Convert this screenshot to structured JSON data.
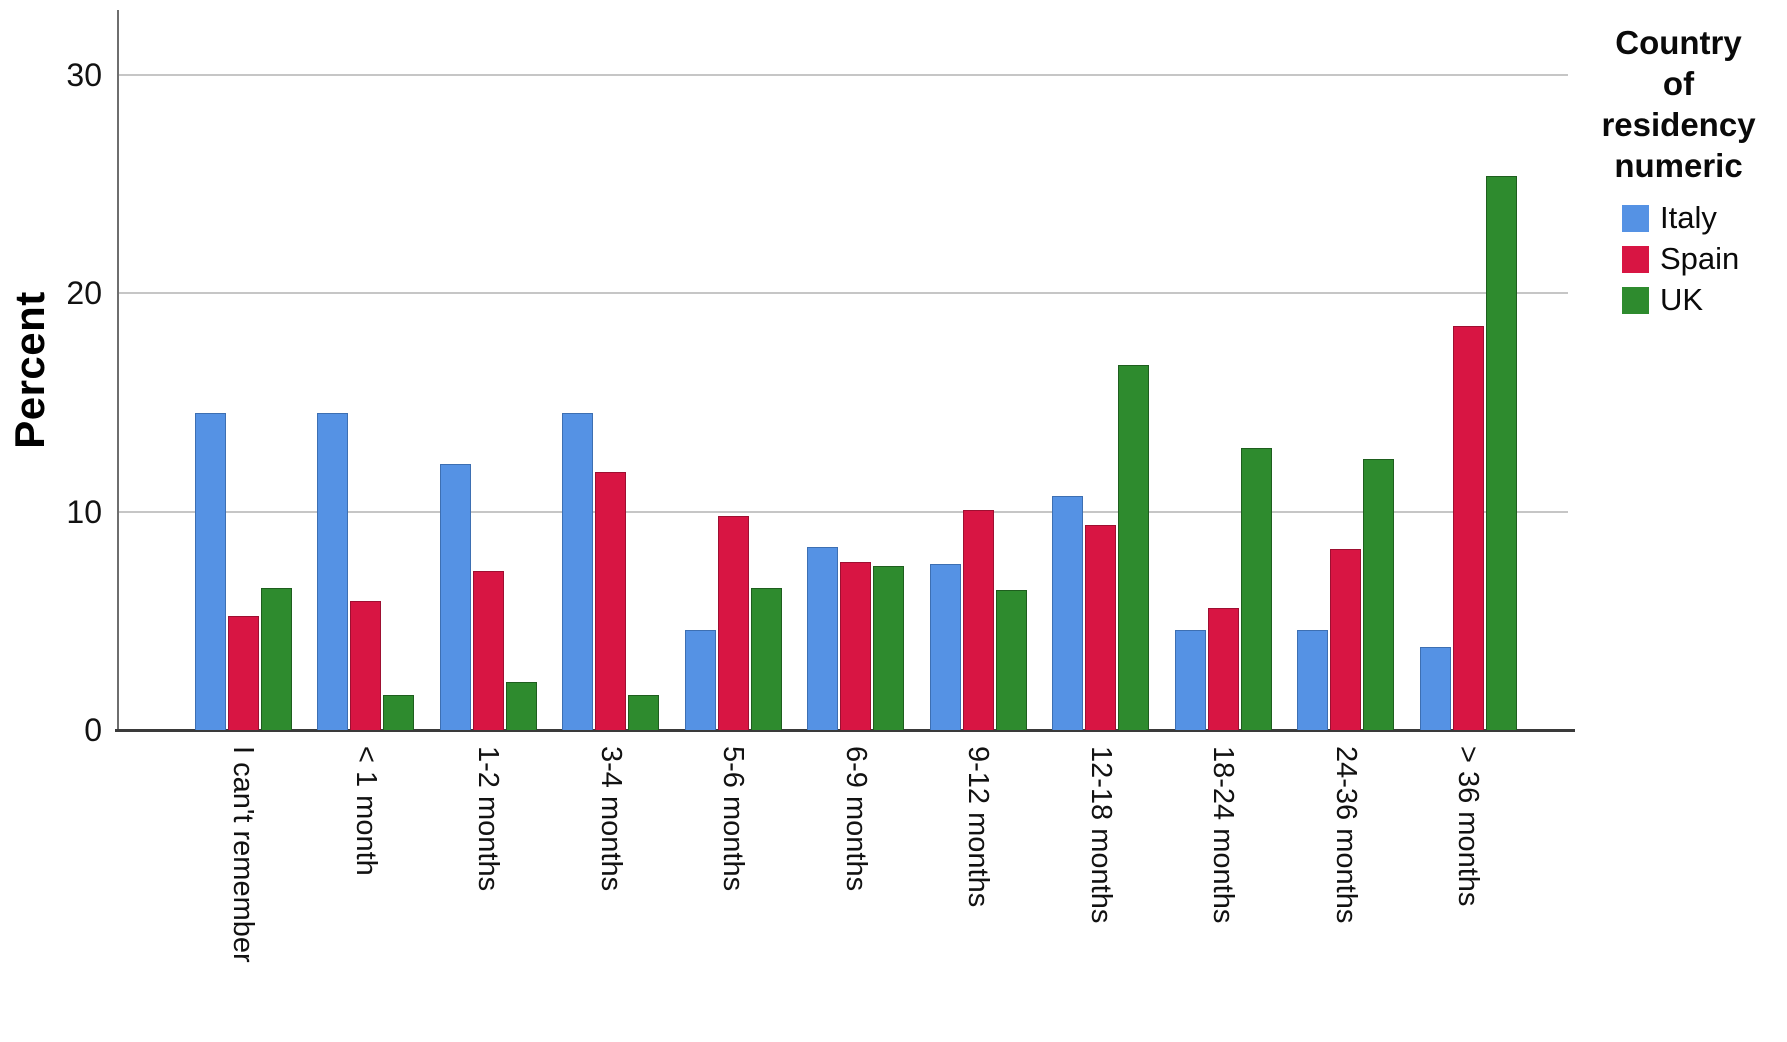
{
  "chart_data": {
    "type": "bar",
    "title": "",
    "ylabel": "Percent",
    "categories": [
      "I can't remember",
      "< 1 month",
      "1-2 months",
      "3-4 months",
      "5-6 months",
      "6-9 months",
      "9-12 months",
      "12-18 months",
      "18-24 months",
      "24-36 months",
      "> 36 months"
    ],
    "series": [
      {
        "name": "Italy",
        "color": "#5592E4",
        "border_color": "#3D6FB2",
        "values": [
          14.5,
          14.5,
          12.2,
          14.5,
          4.6,
          8.4,
          7.6,
          10.7,
          4.6,
          4.6,
          3.8
        ]
      },
      {
        "name": "Spain",
        "color": "#D81543",
        "border_color": "#9E0F31",
        "values": [
          5.2,
          5.9,
          7.3,
          11.8,
          9.8,
          7.7,
          10.1,
          9.4,
          5.6,
          8.3,
          18.5
        ]
      },
      {
        "name": "UK",
        "color": "#2E8B2E",
        "border_color": "#1E5E1E",
        "values": [
          6.5,
          1.6,
          2.2,
          1.6,
          6.5,
          7.5,
          6.4,
          16.7,
          12.9,
          12.4,
          25.4
        ]
      }
    ],
    "yticks": [
      0,
      10,
      20,
      30
    ],
    "ylim": [
      0,
      33
    ],
    "grid": "horizontal",
    "grid_color": "#C6C6C6",
    "y_axis_color": "#6E6E6E",
    "x_axis_color": "#3A3A3A",
    "legend_position": "top-right"
  },
  "legend": {
    "title": "Country of residency numeric",
    "title_lines": [
      "Country",
      "of",
      "residency",
      "numeric"
    ]
  }
}
